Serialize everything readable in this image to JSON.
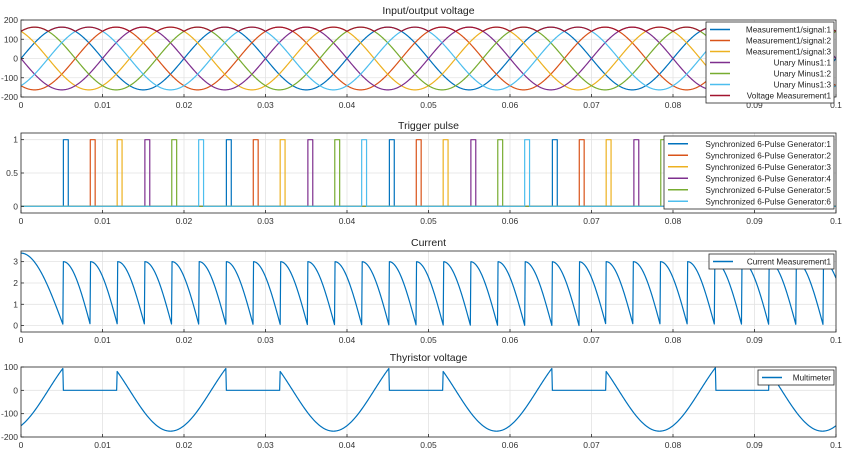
{
  "chart_data": [
    {
      "type": "line",
      "title": "Input/output voltage",
      "xlim": [
        0,
        0.1
      ],
      "ylim": [
        -200,
        200
      ],
      "xticks": [
        "0",
        "0.01",
        "0.02",
        "0.03",
        "0.04",
        "0.05",
        "0.06",
        "0.07",
        "0.08",
        "0.09",
        "0.1"
      ],
      "yticks": [
        "200",
        "100",
        "0",
        "-100",
        "-200"
      ],
      "grid": true,
      "legend_position": "top-right",
      "series": [
        {
          "name": "Measurement1/signal:1",
          "color": "#0072BD",
          "function": "sine",
          "amplitude": 163,
          "frequency_hz": 50,
          "phase_deg": 0
        },
        {
          "name": "Measurement1/signal:2",
          "color": "#D95319",
          "function": "sine",
          "amplitude": 163,
          "frequency_hz": 50,
          "phase_deg": -120
        },
        {
          "name": "Measurement1/signal:3",
          "color": "#EDB120",
          "function": "sine",
          "amplitude": 163,
          "frequency_hz": 50,
          "phase_deg": 120
        },
        {
          "name": "Unary Minus1:1",
          "color": "#7E2F8E",
          "function": "sine",
          "amplitude": 163,
          "frequency_hz": 50,
          "phase_deg": 180
        },
        {
          "name": "Unary Minus1:2",
          "color": "#77AC30",
          "function": "sine",
          "amplitude": 163,
          "frequency_hz": 50,
          "phase_deg": 60
        },
        {
          "name": "Unary Minus1:3",
          "color": "#4DBEEE",
          "function": "sine",
          "amplitude": 163,
          "frequency_hz": 50,
          "phase_deg": -60
        },
        {
          "name": "Voltage Measurement1",
          "color": "#A2142F",
          "function": "controlled_rectifier_envelope",
          "alpha_deg": 30
        }
      ]
    },
    {
      "type": "line",
      "title": "Trigger pulse",
      "xlim": [
        0,
        0.1
      ],
      "ylim": [
        -0.1,
        1.1
      ],
      "xticks": [
        "0",
        "0.01",
        "0.02",
        "0.03",
        "0.04",
        "0.05",
        "0.06",
        "0.07",
        "0.08",
        "0.09",
        "0.1"
      ],
      "yticks": [
        "1",
        "0.5",
        "0"
      ],
      "grid": true,
      "legend_position": "top-right",
      "pulse_width": 0.0006,
      "series": [
        {
          "name": "Synchronized 6-Pulse Generator:1",
          "color": "#0072BD",
          "pulse_starts": [
            0.0052,
            0.0252,
            0.0452,
            0.0652,
            0.0852
          ]
        },
        {
          "name": "Synchronized 6-Pulse Generator:2",
          "color": "#D95319",
          "pulse_starts": [
            0.0085,
            0.0285,
            0.0485,
            0.0685,
            0.0885
          ]
        },
        {
          "name": "Synchronized 6-Pulse Generator:3",
          "color": "#EDB120",
          "pulse_starts": [
            0.0118,
            0.0318,
            0.0518,
            0.0718,
            0.0918
          ]
        },
        {
          "name": "Synchronized 6-Pulse Generator:4",
          "color": "#7E2F8E",
          "pulse_starts": [
            0.0152,
            0.0352,
            0.0552,
            0.0752,
            0.0952
          ]
        },
        {
          "name": "Synchronized 6-Pulse Generator:5",
          "color": "#77AC30",
          "pulse_starts": [
            0.0185,
            0.0385,
            0.0585,
            0.0785,
            0.0985
          ]
        },
        {
          "name": "Synchronized 6-Pulse Generator:6",
          "color": "#4DBEEE",
          "pulse_starts": [
            0.0218,
            0.0418,
            0.0618,
            0.0818
          ]
        }
      ]
    },
    {
      "type": "line",
      "title": "Current",
      "xlim": [
        0,
        0.1
      ],
      "ylim": [
        -0.3,
        3.5
      ],
      "xticks": [
        "0",
        "0.01",
        "0.02",
        "0.03",
        "0.04",
        "0.05",
        "0.06",
        "0.07",
        "0.08",
        "0.09",
        "0.1"
      ],
      "yticks": [
        "3",
        "2",
        "1",
        "0"
      ],
      "grid": true,
      "legend_position": "top-right",
      "series": [
        {
          "name": "Current Measurement1",
          "color": "#0072BD",
          "initial_value": 3.4,
          "peak_value": 3.0,
          "period": 0.00333,
          "first_trigger": 0.0052
        }
      ]
    },
    {
      "type": "line",
      "title": "Thyristor voltage",
      "xlim": [
        0,
        0.1
      ],
      "ylim": [
        -200,
        100
      ],
      "xticks": [
        "0",
        "0.01",
        "0.02",
        "0.03",
        "0.04",
        "0.05",
        "0.06",
        "0.07",
        "0.08",
        "0.09",
        "0.1"
      ],
      "yticks": [
        "100",
        "0",
        "-100",
        "-200"
      ],
      "grid": true,
      "legend_position": "top-right",
      "series": [
        {
          "name": "Multimeter",
          "color": "#0072BD",
          "period": 0.02,
          "conduction": [
            0.0052,
            0.0118
          ],
          "peak": 175
        }
      ]
    }
  ]
}
